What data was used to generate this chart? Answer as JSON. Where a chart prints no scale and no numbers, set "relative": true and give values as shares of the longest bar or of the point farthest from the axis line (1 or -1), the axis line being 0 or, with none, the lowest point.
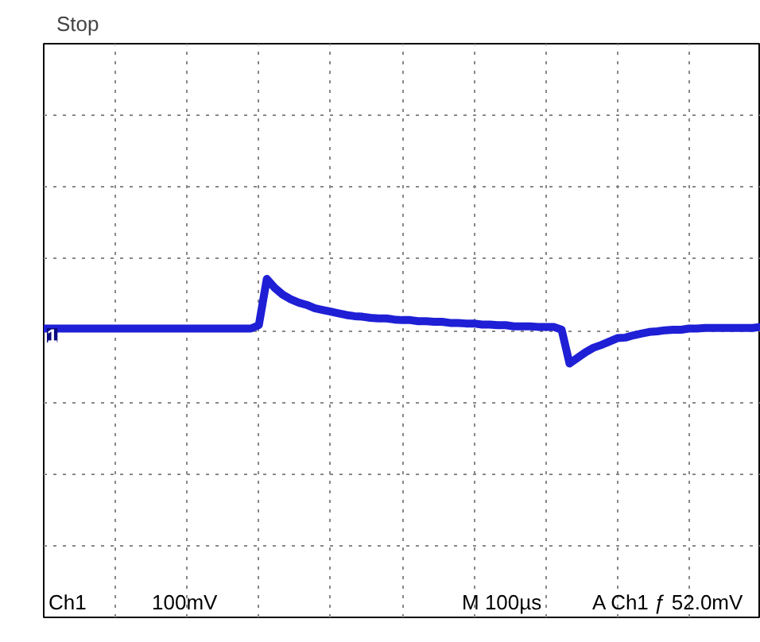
{
  "chart_data": {
    "type": "line",
    "relative": true,
    "grid": true,
    "marker": "none",
    "line_style": "solid",
    "categories": [
      null,
      null,
      null,
      null,
      null,
      null,
      null,
      null,
      null,
      null,
      null,
      null,
      null,
      null,
      null,
      null,
      null,
      null,
      null,
      null,
      null,
      null,
      null,
      null,
      null,
      null,
      null,
      null,
      null,
      null,
      null,
      null,
      null,
      null,
      null,
      null,
      null,
      null,
      null,
      null,
      null,
      null,
      null,
      null,
      null,
      null,
      null,
      null,
      null,
      null,
      null,
      null,
      null,
      null,
      null,
      null,
      null,
      null,
      null,
      null,
      null,
      null,
      null,
      null,
      null,
      null,
      null,
      null,
      null,
      null,
      null,
      null,
      null,
      null,
      null,
      null,
      null,
      null,
      null,
      null,
      null,
      null,
      null,
      null,
      null,
      null,
      null,
      null,
      null,
      null,
      null
    ],
    "series": [
      {
        "color": "#1f1fd6",
        "values": [
          0.12,
          0.12,
          0.12,
          0.12,
          0.12,
          0.12,
          0.12,
          0.12,
          0.12,
          0.12,
          0.12,
          0.12,
          0.12,
          0.12,
          0.12,
          0.12,
          0.12,
          0.12,
          0.12,
          0.12,
          0.12,
          0.12,
          0.12,
          0.12,
          0.12,
          0.12,
          0.12,
          0.18,
          1.0,
          0.84,
          0.72,
          0.64,
          0.58,
          0.54,
          0.48,
          0.45,
          0.42,
          0.39,
          0.36,
          0.34,
          0.33,
          0.31,
          0.3,
          0.3,
          0.28,
          0.27,
          0.27,
          0.25,
          0.25,
          0.24,
          0.24,
          0.22,
          0.22,
          0.21,
          0.21,
          0.19,
          0.19,
          0.18,
          0.18,
          0.16,
          0.16,
          0.16,
          0.15,
          0.15,
          0.15,
          0.1,
          -0.5,
          -0.4,
          -0.3,
          -0.22,
          -0.17,
          -0.11,
          -0.05,
          -0.04,
          0.0,
          0.03,
          0.06,
          0.07,
          0.09,
          0.1,
          0.1,
          0.12,
          0.12,
          0.13,
          0.13,
          0.13,
          0.13,
          0.13,
          0.13,
          0.13,
          0.15
        ]
      }
    ],
    "annotations": [
      "Stop",
      "Ch1",
      "100mV",
      "M 100µs",
      "A Ch1 ƒ 52.0mV",
      {
        "text": "1",
        "y": 0
      }
    ]
  }
}
